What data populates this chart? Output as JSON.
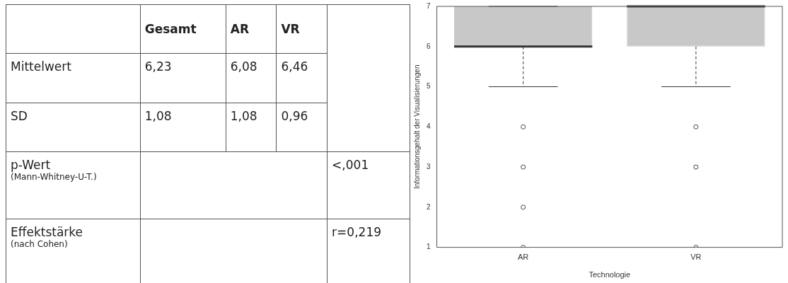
{
  "chart_data": [
    {
      "type": "other",
      "annotations": [
        "Gesamt",
        "AR",
        "VR",
        "Mittelwert",
        "6,23",
        "6,08",
        "6,46",
        "SD",
        "1,08",
        "1,08",
        "0,96",
        "p-Wert",
        "(Mann-Whitney-U-T.)",
        "<,001",
        "Effektstärke",
        "(nach Cohen)",
        "r=0,219"
      ]
    },
    {
      "type": "box",
      "categories": [
        "AR",
        "VR"
      ],
      "color": "#c8c8c8",
      "xlabel": "Technologie",
      "ylabel": "Informationsgehalt der Visualisierungen",
      "ylim": [
        1,
        7
      ],
      "yticks": [
        1,
        2,
        3,
        4,
        5,
        6,
        7
      ],
      "grid": false,
      "legend": false,
      "boxes": [
        {
          "low": 5,
          "q1": 6,
          "median": 6,
          "q3": 7,
          "high": 7,
          "outliers": [
            4,
            3,
            2,
            1
          ]
        },
        {
          "low": 5,
          "q1": 6,
          "median": 7,
          "q3": 7,
          "high": 7,
          "outliers": [
            4,
            3,
            1
          ]
        }
      ]
    }
  ]
}
